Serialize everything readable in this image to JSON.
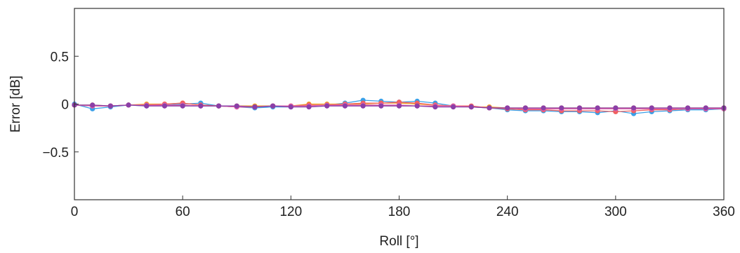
{
  "chart_data": {
    "type": "line",
    "title": "",
    "xlabel": "Roll [°]",
    "ylabel": "Error [dB]",
    "xlim": [
      0,
      360
    ],
    "ylim": [
      -1,
      1
    ],
    "xticks": [
      0,
      60,
      120,
      180,
      240,
      300,
      360
    ],
    "xtick_labels": [
      "0",
      "60",
      "120",
      "180",
      "240",
      "300",
      "360"
    ],
    "yticks": [
      0.5,
      0,
      -0.5
    ],
    "ytick_labels": [
      "0.5",
      "0",
      "−0.5"
    ],
    "grid": false,
    "x": [
      0,
      10,
      20,
      30,
      40,
      50,
      60,
      70,
      80,
      90,
      100,
      110,
      120,
      130,
      140,
      150,
      160,
      170,
      180,
      190,
      200,
      210,
      220,
      230,
      240,
      250,
      260,
      270,
      280,
      290,
      300,
      310,
      320,
      330,
      340,
      350,
      360
    ],
    "series": [
      {
        "color": "#3aa0e8",
        "values": [
          0.0,
          -0.05,
          -0.03,
          -0.01,
          -0.02,
          -0.01,
          0.0,
          0.01,
          -0.02,
          -0.03,
          -0.04,
          -0.03,
          -0.03,
          -0.02,
          -0.01,
          0.01,
          0.04,
          0.03,
          0.02,
          0.03,
          0.01,
          -0.02,
          -0.03,
          -0.04,
          -0.06,
          -0.07,
          -0.07,
          -0.08,
          -0.08,
          -0.09,
          -0.07,
          -0.1,
          -0.08,
          -0.07,
          -0.06,
          -0.06,
          -0.05
        ]
      },
      {
        "color": "#f0a020",
        "values": [
          -0.01,
          -0.01,
          -0.02,
          -0.01,
          0.0,
          0.0,
          0.01,
          -0.01,
          -0.02,
          -0.02,
          -0.02,
          -0.02,
          -0.02,
          0.0,
          0.0,
          0.0,
          0.0,
          0.01,
          0.01,
          0.0,
          -0.01,
          -0.02,
          -0.03,
          -0.03,
          -0.04,
          -0.04,
          -0.04,
          -0.04,
          -0.04,
          -0.04,
          -0.04,
          -0.04,
          -0.04,
          -0.04,
          -0.04,
          -0.04,
          -0.04
        ]
      },
      {
        "color": "#f06060",
        "values": [
          -0.01,
          -0.02,
          -0.02,
          -0.01,
          -0.01,
          0.0,
          0.01,
          -0.01,
          -0.02,
          -0.03,
          -0.03,
          -0.02,
          -0.02,
          -0.01,
          -0.01,
          0.0,
          0.01,
          0.01,
          0.02,
          0.01,
          -0.01,
          -0.02,
          -0.02,
          -0.04,
          -0.05,
          -0.06,
          -0.06,
          -0.07,
          -0.07,
          -0.07,
          -0.08,
          -0.07,
          -0.06,
          -0.06,
          -0.05,
          -0.05,
          -0.04
        ]
      },
      {
        "color": "#e060a8",
        "values": [
          -0.01,
          -0.02,
          -0.02,
          -0.01,
          -0.01,
          -0.01,
          -0.01,
          -0.02,
          -0.02,
          -0.03,
          -0.03,
          -0.02,
          -0.02,
          -0.02,
          -0.01,
          -0.01,
          -0.01,
          -0.01,
          -0.01,
          -0.02,
          -0.02,
          -0.02,
          -0.03,
          -0.04,
          -0.04,
          -0.05,
          -0.05,
          -0.05,
          -0.05,
          -0.05,
          -0.05,
          -0.05,
          -0.05,
          -0.05,
          -0.05,
          -0.05,
          -0.05
        ]
      },
      {
        "color": "#8a3fa8",
        "values": [
          -0.01,
          -0.01,
          -0.02,
          -0.01,
          -0.02,
          -0.02,
          -0.02,
          -0.02,
          -0.02,
          -0.02,
          -0.03,
          -0.02,
          -0.03,
          -0.03,
          -0.02,
          -0.02,
          -0.02,
          -0.02,
          -0.02,
          -0.02,
          -0.03,
          -0.03,
          -0.03,
          -0.04,
          -0.04,
          -0.04,
          -0.04,
          -0.04,
          -0.04,
          -0.04,
          -0.04,
          -0.04,
          -0.04,
          -0.04,
          -0.04,
          -0.04,
          -0.04
        ]
      }
    ]
  }
}
